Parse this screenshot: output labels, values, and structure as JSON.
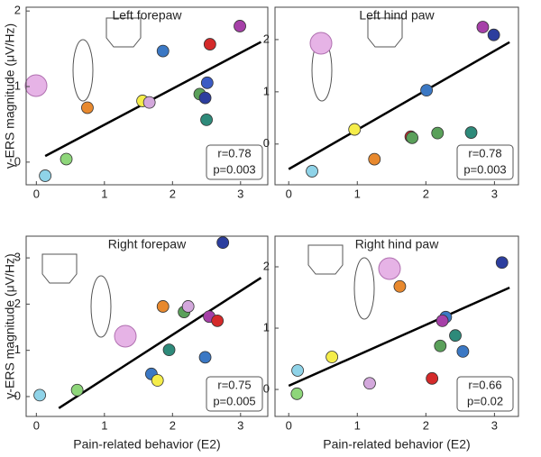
{
  "chart_data": [
    {
      "type": "scatter",
      "title": "Left forepaw",
      "ylabel": "γ-ERS magnitude (μV/Hz)",
      "x": [
        0.13,
        0.44,
        0.75,
        1.56,
        1.66,
        1.86,
        2.4,
        2.48,
        2.5,
        2.51,
        2.55,
        2.99
      ],
      "y": [
        -0.18,
        0.04,
        0.72,
        0.81,
        0.79,
        1.47,
        0.9,
        0.85,
        0.56,
        1.05,
        1.56,
        1.8
      ],
      "colors": [
        "#8fd3e8",
        "#8ed67a",
        "#e8892e",
        "#f5ed4a",
        "#d3a8dc",
        "#3b78c4",
        "#5aa05a",
        "#2c3e9e",
        "#2e8a7a",
        "#3b5bc4",
        "#d42a2a",
        "#a640a8"
      ],
      "fit_x": [
        0.13,
        3.3
      ],
      "fit_y": [
        0.08,
        1.59
      ],
      "fit_color": "#000000",
      "annotations": [
        "r=0.78",
        "p=0.003"
      ],
      "xlim": [
        -0.15,
        3.4
      ],
      "ylim": [
        -0.3,
        2.05
      ],
      "xticks": [
        0,
        1,
        2,
        3
      ],
      "yticks": [
        0,
        1,
        2
      ]
    },
    {
      "type": "scatter",
      "title": "Left hind paw",
      "x": [
        0.34,
        0.96,
        1.25,
        1.78,
        1.8,
        2.01,
        2.17,
        2.66,
        2.83,
        2.99
      ],
      "y": [
        -0.52,
        0.28,
        -0.29,
        0.14,
        0.12,
        1.03,
        0.21,
        0.22,
        2.24,
        2.09
      ],
      "colors": [
        "#8fd3e8",
        "#f5ed4a",
        "#e8892e",
        "#d42a2a",
        "#5aa05a",
        "#3b78c4",
        "#5aa05a",
        "#2e8a7a",
        "#a640a8",
        "#2c3e9e"
      ],
      "fit_x": [
        0,
        3.22
      ],
      "fit_y": [
        -0.48,
        1.95
      ],
      "fit_color": "#000000",
      "annotations": [
        "r=0.78",
        "p=0.003"
      ],
      "xlim": [
        -0.2,
        3.35
      ],
      "ylim": [
        -0.78,
        2.62
      ],
      "xticks": [
        0,
        1,
        2,
        3
      ],
      "yticks": [
        0,
        1,
        2
      ]
    },
    {
      "type": "scatter",
      "title": "Right forepaw",
      "ylabel": "γ-ERS magnitude (μV/Hz)",
      "xlabel": "Pain-related behavior (E2)",
      "x": [
        0.05,
        0.6,
        1.69,
        1.78,
        1.86,
        1.95,
        2.17,
        2.23,
        2.48,
        2.54,
        2.66,
        2.74
      ],
      "y": [
        0.03,
        0.14,
        0.49,
        0.35,
        1.95,
        1.01,
        1.83,
        1.95,
        0.85,
        1.73,
        1.64,
        3.33
      ],
      "colors": [
        "#8fd3e8",
        "#8ed67a",
        "#3b78c4",
        "#f5ed4a",
        "#e8892e",
        "#2e8a7a",
        "#5aa05a",
        "#d3a8dc",
        "#3b78c4",
        "#a640a8",
        "#d42a2a",
        "#2c3e9e"
      ],
      "fit_x": [
        0.33,
        3.3
      ],
      "fit_y": [
        -0.25,
        2.57
      ],
      "fit_color": "#000000",
      "annotations": [
        "r=0.75",
        "p=0.005"
      ],
      "xlim": [
        -0.15,
        3.4
      ],
      "ylim": [
        -0.43,
        3.47
      ],
      "xticks": [
        0,
        1,
        2,
        3
      ],
      "yticks": [
        0,
        1,
        2,
        3
      ]
    },
    {
      "type": "scatter",
      "title": "Right hind paw",
      "xlabel": "Pain-related behavior (E2)",
      "x": [
        0.13,
        0.12,
        0.63,
        1.18,
        1.62,
        2.09,
        2.21,
        2.29,
        2.24,
        2.43,
        2.54,
        3.11
      ],
      "y": [
        0.31,
        -0.07,
        0.53,
        0.1,
        1.68,
        0.18,
        0.71,
        1.18,
        1.12,
        0.88,
        0.62,
        2.07
      ],
      "colors": [
        "#8fd3e8",
        "#8ed67a",
        "#f5ed4a",
        "#d3a8dc",
        "#e8892e",
        "#d42a2a",
        "#5aa05a",
        "#3b78c4",
        "#a640a8",
        "#2e8a7a",
        "#3b78c4",
        "#2c3e9e"
      ],
      "fit_x": [
        0,
        3.22
      ],
      "fit_y": [
        0.06,
        1.66
      ],
      "fit_color": "#000000",
      "annotations": [
        "r=0.66",
        "p=0.02"
      ],
      "xlim": [
        -0.2,
        3.35
      ],
      "ylim": [
        -0.44,
        2.5
      ],
      "xticks": [
        0,
        1,
        2,
        3
      ],
      "yticks": [
        0,
        1,
        2
      ]
    }
  ]
}
